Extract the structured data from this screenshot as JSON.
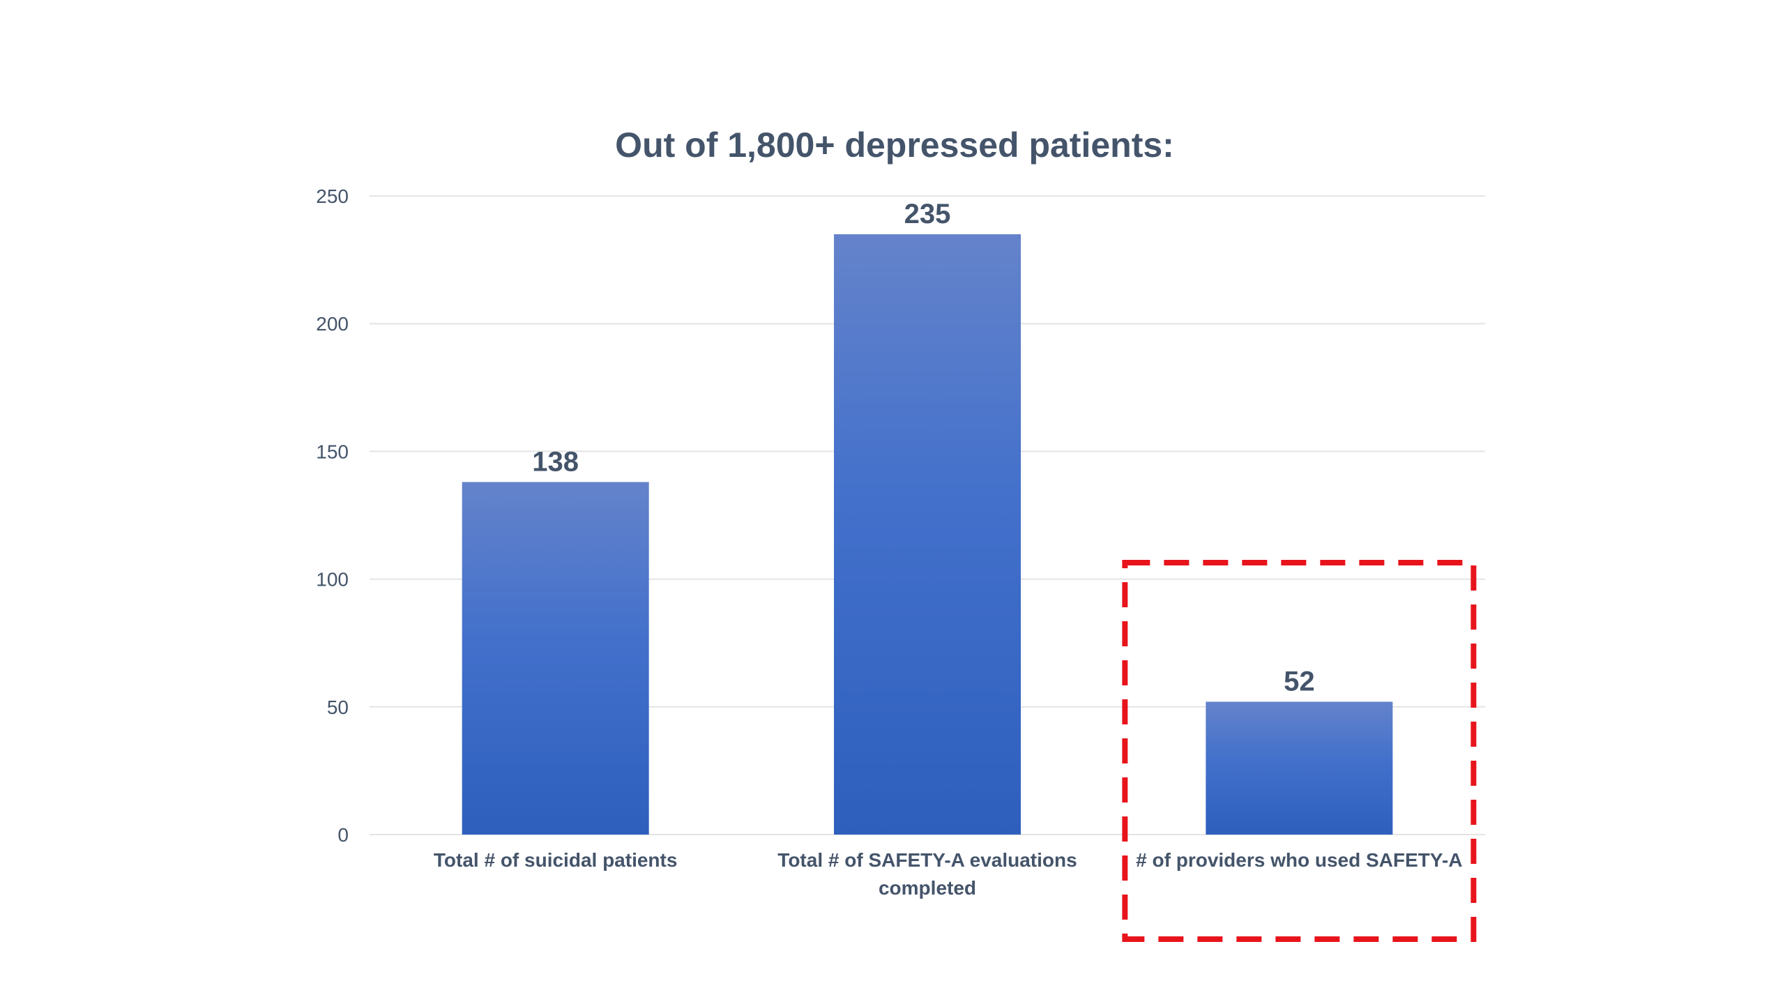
{
  "chart_data": {
    "type": "bar",
    "title": "Out of 1,800+ depressed patients:",
    "categories": [
      [
        "Total # of suicidal patients"
      ],
      [
        "Total # of SAFETY-A evaluations",
        "completed"
      ],
      [
        "# of providers who used SAFETY-A"
      ]
    ],
    "values": [
      138,
      235,
      52
    ],
    "data_labels": [
      "138",
      "235",
      "52"
    ],
    "ylim": [
      0,
      250
    ],
    "yticks": [
      0,
      50,
      100,
      150,
      200,
      250
    ],
    "grid": true,
    "legend": "none",
    "highlight": {
      "category_index": 2,
      "style": "dashed box"
    },
    "colors": {
      "bar_top": "#6483cb",
      "bar_bottom": "#2e5fbd",
      "gridline": "#e4e4e4",
      "text": "#44546a",
      "highlight_box": "#e8141c"
    }
  }
}
